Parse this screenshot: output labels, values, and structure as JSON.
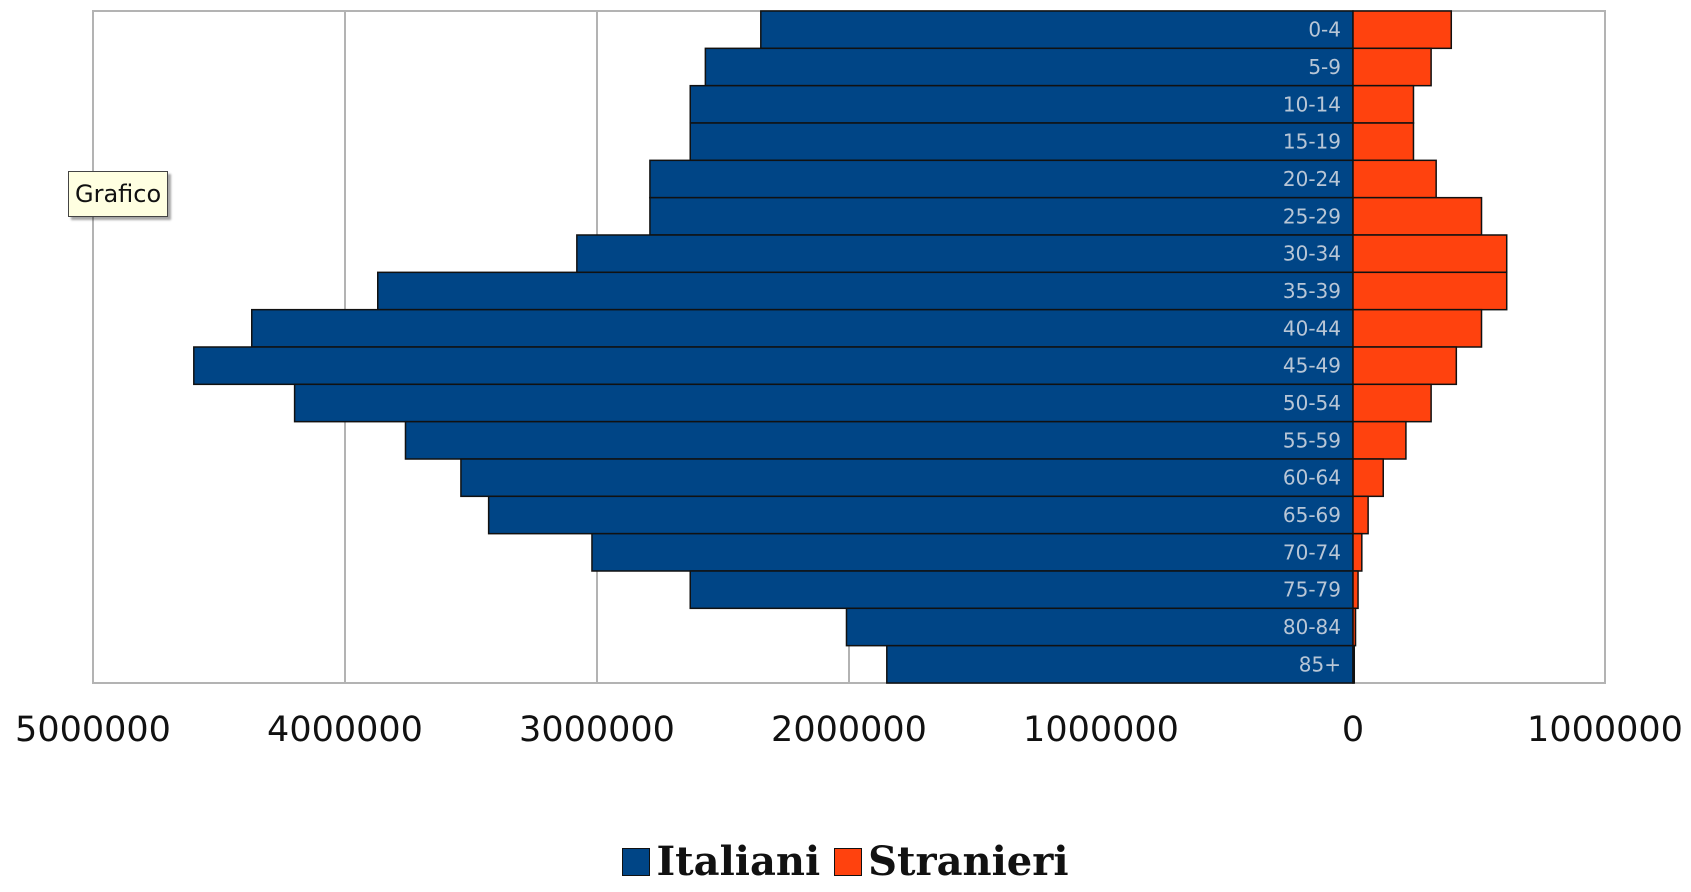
{
  "chart_data": {
    "type": "bar",
    "orientation": "horizontal",
    "layout": "population-pyramid",
    "title": "",
    "xlabel": "",
    "ylabel": "",
    "categories": [
      "0-4",
      "5-9",
      "10-14",
      "15-19",
      "20-24",
      "25-29",
      "30-34",
      "35-39",
      "40-44",
      "45-49",
      "50-54",
      "55-59",
      "60-64",
      "65-69",
      "70-74",
      "75-79",
      "80-84",
      "85+"
    ],
    "series": [
      {
        "name": "Italiani",
        "color": "#004586",
        "side": "left",
        "values": [
          2350000,
          2570000,
          2630000,
          2630000,
          2790000,
          2790000,
          3080000,
          3870000,
          4370000,
          4600000,
          4200000,
          3760000,
          3540000,
          3430000,
          3020000,
          2630000,
          2010000,
          1850000
        ]
      },
      {
        "name": "Stranieri",
        "color": "#ff420e",
        "side": "right",
        "values": [
          390000,
          310000,
          240000,
          240000,
          330000,
          510000,
          610000,
          610000,
          510000,
          410000,
          310000,
          210000,
          120000,
          60000,
          35000,
          20000,
          10000,
          5000
        ]
      }
    ],
    "xlim": [
      -5000000,
      1000000
    ],
    "xticks": [
      {
        "value": -5000000,
        "label": "5000000"
      },
      {
        "value": -4000000,
        "label": "4000000"
      },
      {
        "value": -3000000,
        "label": "3000000"
      },
      {
        "value": -2000000,
        "label": "2000000"
      },
      {
        "value": -1000000,
        "label": "1000000"
      },
      {
        "value": 0,
        "label": "0"
      },
      {
        "value": 1000000,
        "label": "1000000"
      }
    ],
    "grid": true,
    "legend_position": "bottom"
  },
  "tooltip": {
    "text": "Grafico"
  },
  "legend": [
    {
      "label": "Italiani",
      "color": "#004586"
    },
    {
      "label": "Stranieri",
      "color": "#ff420e"
    }
  ]
}
